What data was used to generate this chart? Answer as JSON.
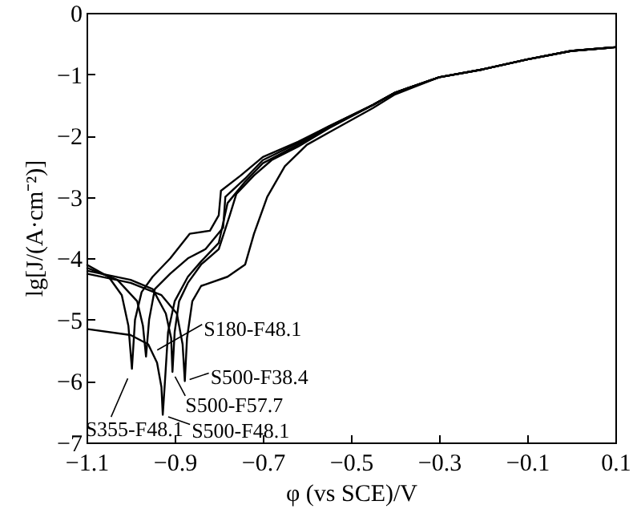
{
  "chart_data": {
    "type": "line",
    "xlabel": "φ (vs SCE)/V",
    "ylabel": "lg[J/(A·cm⁻²)]",
    "xlim": [
      -1.1,
      0.1
    ],
    "ylim": [
      -7,
      0
    ],
    "xticks": [
      -1.1,
      -0.9,
      -0.7,
      -0.5,
      -0.3,
      -0.1,
      0.1
    ],
    "yticks": [
      -7,
      -6,
      -5,
      -4,
      -3,
      -2,
      -1,
      0
    ],
    "grid": false,
    "marker": "none",
    "line_style": "solid",
    "series": [
      {
        "color": "#000000",
        "x": [
          -1.1,
          -1.05,
          -1.02,
          -1.005,
          -0.997,
          -0.99,
          -0.975,
          -0.95,
          -0.91,
          -0.866,
          -0.82,
          -0.8,
          -0.795,
          -0.75,
          -0.7,
          -0.62,
          -0.55,
          -0.45,
          -0.4,
          -0.3,
          -0.2,
          -0.1,
          0.0,
          0.1
        ],
        "values": [
          -4.1,
          -4.3,
          -4.6,
          -5.1,
          -5.8,
          -5.0,
          -4.55,
          -4.3,
          -4.0,
          -3.6,
          -3.55,
          -3.3,
          -2.9,
          -2.65,
          -2.35,
          -2.1,
          -1.85,
          -1.5,
          -1.3,
          -1.05,
          -0.92,
          -0.76,
          -0.62,
          -0.56
        ]
      },
      {
        "color": "#000000",
        "x": [
          -1.1,
          -1.03,
          -0.985,
          -0.972,
          -0.965,
          -0.958,
          -0.945,
          -0.91,
          -0.87,
          -0.83,
          -0.79,
          -0.785,
          -0.74,
          -0.7,
          -0.62,
          -0.55,
          -0.45,
          -0.4,
          -0.3,
          -0.2,
          -0.1,
          0.0,
          0.1
        ],
        "values": [
          -4.15,
          -4.35,
          -4.7,
          -5.1,
          -5.6,
          -5.0,
          -4.5,
          -4.25,
          -4.0,
          -3.85,
          -3.5,
          -3.0,
          -2.7,
          -2.4,
          -2.12,
          -1.85,
          -1.5,
          -1.3,
          -1.05,
          -0.92,
          -0.76,
          -0.62,
          -0.56
        ]
      },
      {
        "color": "#000000",
        "x": [
          -1.1,
          -1.0,
          -0.96,
          -0.94,
          -0.93,
          -0.927,
          -0.922,
          -0.915,
          -0.9,
          -0.87,
          -0.84,
          -0.8,
          -0.78,
          -0.74,
          -0.7,
          -0.62,
          -0.55,
          -0.45,
          -0.4,
          -0.3,
          -0.2,
          -0.1,
          0.0,
          0.1
        ],
        "values": [
          -5.15,
          -5.25,
          -5.4,
          -5.7,
          -6.1,
          -6.55,
          -6.0,
          -5.2,
          -4.7,
          -4.3,
          -4.05,
          -3.75,
          -3.1,
          -2.75,
          -2.45,
          -2.15,
          -1.87,
          -1.5,
          -1.3,
          -1.05,
          -0.92,
          -0.76,
          -0.62,
          -0.56
        ]
      },
      {
        "color": "#000000",
        "x": [
          -1.1,
          -1.0,
          -0.95,
          -0.92,
          -0.908,
          -0.905,
          -0.9,
          -0.89,
          -0.87,
          -0.84,
          -0.8,
          -0.775,
          -0.76,
          -0.72,
          -0.68,
          -0.62,
          -0.55,
          -0.45,
          -0.4,
          -0.3,
          -0.2,
          -0.1,
          0.0,
          0.1
        ],
        "values": [
          -4.2,
          -4.35,
          -4.5,
          -4.9,
          -5.3,
          -5.85,
          -5.2,
          -4.7,
          -4.4,
          -4.1,
          -3.85,
          -3.3,
          -2.95,
          -2.65,
          -2.4,
          -2.18,
          -1.88,
          -1.5,
          -1.3,
          -1.05,
          -0.92,
          -0.76,
          -0.62,
          -0.56
        ]
      },
      {
        "color": "#000000",
        "x": [
          -1.1,
          -1.0,
          -0.93,
          -0.895,
          -0.882,
          -0.877,
          -0.872,
          -0.86,
          -0.84,
          -0.78,
          -0.74,
          -0.72,
          -0.69,
          -0.65,
          -0.6,
          -0.55,
          -0.5,
          -0.45,
          -0.4,
          -0.3,
          -0.2,
          -0.1,
          0.0,
          0.1
        ],
        "values": [
          -4.25,
          -4.4,
          -4.6,
          -4.9,
          -5.4,
          -6.0,
          -5.3,
          -4.7,
          -4.45,
          -4.3,
          -4.1,
          -3.6,
          -3.0,
          -2.5,
          -2.15,
          -1.95,
          -1.75,
          -1.55,
          -1.33,
          -1.05,
          -0.92,
          -0.76,
          -0.62,
          -0.56
        ]
      }
    ],
    "annotations": [
      {
        "text": "S180-F48.1",
        "x": -0.965,
        "y": -5.6
      },
      {
        "text": "S500-F38.4",
        "x": -0.877,
        "y": -6.0
      },
      {
        "text": "S500-F57.7",
        "x": -0.905,
        "y": -5.85
      },
      {
        "text": "S500-F48.1",
        "x": -0.927,
        "y": -6.55
      },
      {
        "text": "S355-F48.1",
        "x": -0.997,
        "y": -5.8
      }
    ]
  }
}
